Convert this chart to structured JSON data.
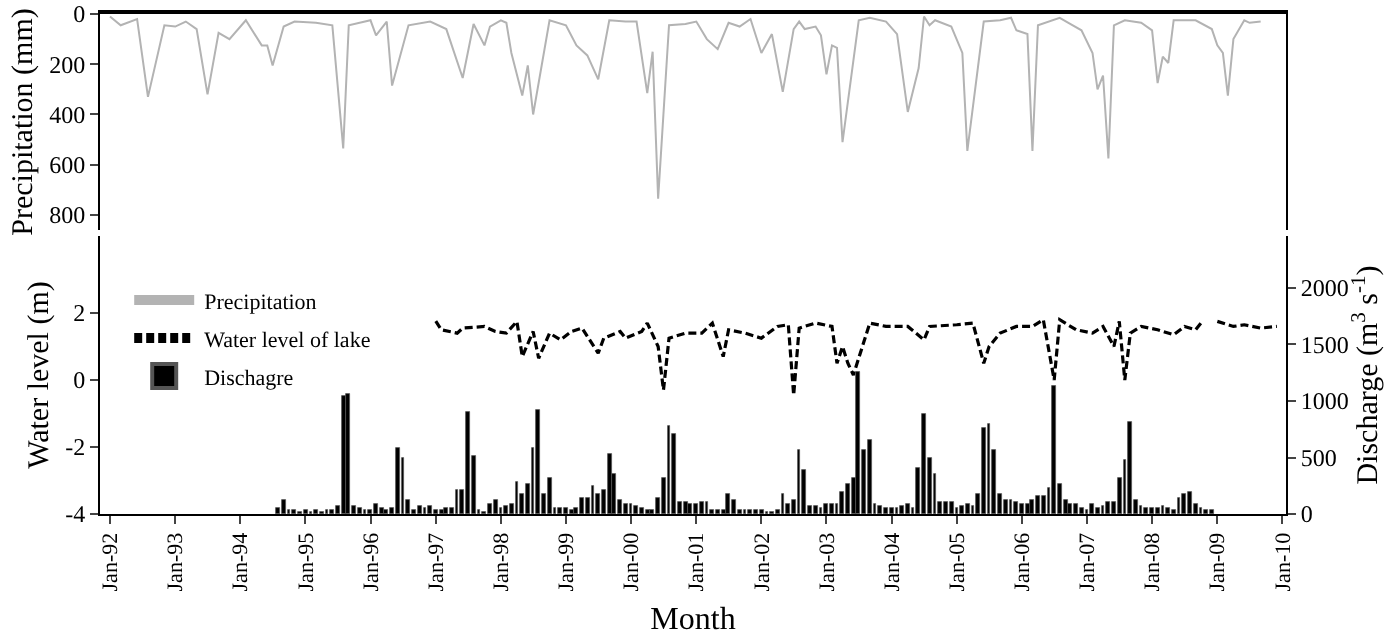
{
  "chart_data": [
    {
      "type": "line",
      "ylabel": "Precipitation (mm)",
      "xlim": [
        "1991-11-06",
        "2010-01-21"
      ],
      "ylim": [
        860,
        0
      ],
      "yticks": [
        0,
        200,
        400,
        600,
        800
      ],
      "tick_labels": "y",
      "series": [
        {
          "name": "Precipitation",
          "color": "#b3b3b3",
          "x": [
            "1992-01",
            "1992-03",
            "1992-06",
            "1992-08",
            "1992-11",
            "1993-01",
            "1993-03",
            "1993-05",
            "1993-07",
            "1993-09",
            "1993-11",
            "1994-02",
            "1994-05",
            "1994-06",
            "1994-07",
            "1994-09",
            "1994-11",
            "1995-03",
            "1995-06",
            "1995-08",
            "1995-09",
            "1996-01",
            "1996-02",
            "1996-04",
            "1996-05",
            "1996-08",
            "1996-12",
            "1997-03",
            "1997-06",
            "1997-08",
            "1997-10",
            "1997-11",
            "1998-01",
            "1998-02",
            "1998-03",
            "1998-05",
            "1998-06",
            "1998-07",
            "1998-10",
            "1999-01",
            "1999-03",
            "1999-05",
            "1999-07",
            "1999-09",
            "1999-12",
            "2000-02",
            "2000-04",
            "2000-05",
            "2000-06",
            "2000-08",
            "2000-11",
            "2001-01",
            "2001-03",
            "2001-05",
            "2001-07",
            "2001-09",
            "2001-11",
            "2002-01",
            "2002-03",
            "2002-05",
            "2002-07",
            "2002-08",
            "2002-09",
            "2002-11",
            "2002-12",
            "2003-01",
            "2003-02",
            "2003-03",
            "2003-04",
            "2003-07",
            "2003-09",
            "2003-12",
            "2004-02",
            "2004-04",
            "2004-06",
            "2004-07",
            "2004-08",
            "2004-09",
            "2004-12",
            "2005-02",
            "2005-03",
            "2005-06",
            "2005-09",
            "2005-11",
            "2005-12",
            "2006-02",
            "2006-03",
            "2006-04",
            "2006-08",
            "2006-10",
            "2006-12",
            "2007-02",
            "2007-03",
            "2007-04",
            "2007-05",
            "2007-06",
            "2007-08",
            "2007-11",
            "2008-01",
            "2008-02",
            "2008-03",
            "2008-04",
            "2008-05",
            "2008-07",
            "2008-09",
            "2008-12",
            "2009-01",
            "2009-02",
            "2009-03",
            "2009-04",
            "2009-06",
            "2009-07",
            "2009-09"
          ],
          "values": [
            10,
            45,
            20,
            330,
            45,
            50,
            30,
            60,
            320,
            75,
            100,
            25,
            125,
            125,
            205,
            50,
            30,
            35,
            45,
            535,
            45,
            25,
            85,
            30,
            285,
            45,
            30,
            60,
            255,
            40,
            125,
            50,
            25,
            35,
            155,
            325,
            205,
            400,
            25,
            45,
            125,
            165,
            260,
            25,
            30,
            30,
            315,
            150,
            735,
            45,
            40,
            30,
            100,
            140,
            35,
            50,
            20,
            155,
            80,
            310,
            60,
            30,
            60,
            50,
            85,
            240,
            125,
            135,
            510,
            25,
            15,
            30,
            80,
            390,
            215,
            10,
            45,
            25,
            50,
            155,
            545,
            30,
            25,
            15,
            65,
            80,
            545,
            45,
            15,
            40,
            65,
            155,
            300,
            245,
            575,
            45,
            25,
            35,
            65,
            275,
            170,
            195,
            25,
            25,
            25,
            60,
            125,
            155,
            325,
            100,
            25,
            35,
            30
          ]
        }
      ]
    },
    {
      "type": "bar",
      "xlabel": "Month",
      "ylabel": "Water level (m)",
      "y2label": "Discharge (m$^{3}$ s$^{-1}$)",
      "legend": "top left",
      "xlim": [
        "1991-11-06",
        "2010-01-21"
      ],
      "xticks": [
        {
          "value": "1992-01",
          "label": "Jan-92"
        },
        {
          "value": "1993-01",
          "label": "Jan-93"
        },
        {
          "value": "1994-01",
          "label": "Jan-94"
        },
        {
          "value": "1995-01",
          "label": "Jan-95"
        },
        {
          "value": "1996-01",
          "label": "Jan-96"
        },
        {
          "value": "1997-01",
          "label": "Jan-97"
        },
        {
          "value": "1998-01",
          "label": "Jan-98"
        },
        {
          "value": "1999-01",
          "label": "Jan-99"
        },
        {
          "value": "2000-01",
          "label": "Jan-00"
        },
        {
          "value": "2001-01",
          "label": "Jan-01"
        },
        {
          "value": "2002-01",
          "label": "Jan-02"
        },
        {
          "value": "2003-01",
          "label": "Jan-03"
        },
        {
          "value": "2004-01",
          "label": "Jan-04"
        },
        {
          "value": "2005-01",
          "label": "Jan-05"
        },
        {
          "value": "2006-01",
          "label": "Jan-06"
        },
        {
          "value": "2007-01",
          "label": "Jan-07"
        },
        {
          "value": "2008-01",
          "label": "Jan-08"
        },
        {
          "value": "2009-01",
          "label": "Jan-09"
        },
        {
          "value": "2010-01",
          "label": "Jan-10"
        }
      ],
      "ylim": [
        -4,
        4.3
      ],
      "yticks": [
        -4,
        -2,
        0,
        2
      ],
      "y2lim": [
        0,
        2460
      ],
      "y2ticks": [
        0,
        500,
        1000,
        1500,
        2000
      ],
      "series": [
        {
          "name": "Water level of lake",
          "type": "line",
          "line_style": "dashed",
          "color": "#000000",
          "x": [
            "1997-01",
            "1997-02",
            "1997-05",
            "1997-06",
            "1997-10",
            "1997-12",
            "1998-02",
            "1998-04",
            "1998-05",
            "1998-07",
            "1998-08",
            "1998-10",
            "1998-12",
            "1999-02",
            "1999-04",
            "1999-07",
            "1999-08",
            "1999-11",
            "1999-12",
            "2000-03",
            "2000-04",
            "2000-06",
            "2000-07",
            "2000-08",
            "2000-11",
            "2001-02",
            "2001-04",
            "2001-06",
            "2001-07",
            "2001-10",
            "2002-01",
            "2002-04",
            "2002-06",
            "2002-07",
            "2002-08",
            "2002-11",
            "2003-02",
            "2003-03",
            "2003-04",
            "2003-05",
            "2003-06",
            "2003-09",
            "2003-12",
            "2004-04",
            "2004-07",
            "2004-08",
            "2005-01",
            "2005-04",
            "2005-06",
            "2005-07",
            "2005-09",
            "2005-12",
            "2006-03",
            "2006-05",
            "2006-07",
            "2006-08",
            "2006-11",
            "2007-02",
            "2007-04",
            "2007-06",
            "2007-07",
            "2007-08",
            "2007-09",
            "2007-11",
            "2008-02",
            "2008-05",
            "2008-07",
            "2008-09",
            "2008-10",
            "2008-11",
            "2009-01",
            "2009-04",
            "2009-06",
            "2009-09",
            "2009-12"
          ],
          "values": [
            1.76,
            1.5,
            1.4,
            1.55,
            1.6,
            1.45,
            1.4,
            1.75,
            0.7,
            1.45,
            0.65,
            1.4,
            1.2,
            1.45,
            1.55,
            0.8,
            1.25,
            1.45,
            1.25,
            1.45,
            1.7,
            1.0,
            -0.3,
            1.25,
            1.4,
            1.4,
            1.7,
            0.7,
            1.5,
            1.4,
            1.25,
            1.6,
            1.65,
            -0.45,
            1.55,
            1.7,
            1.6,
            0.5,
            1.0,
            0.5,
            0.15,
            1.7,
            1.6,
            1.6,
            1.2,
            1.6,
            1.65,
            1.7,
            0.5,
            1.0,
            1.4,
            1.6,
            1.6,
            1.8,
            0.0,
            1.8,
            1.5,
            1.4,
            1.6,
            1.0,
            1.75,
            0.0,
            1.4,
            1.6,
            1.5,
            1.35,
            1.6,
            1.5,
            1.7,
            null,
            1.75,
            1.6,
            1.65,
            1.55,
            1.6
          ]
        },
        {
          "name": "Dischagre",
          "type": "bar",
          "axis": "y2",
          "color": "#000000",
          "x": [
            "1994-08",
            "1994-09",
            "1994-10",
            "1994-11",
            "1994-12",
            "1995-01",
            "1995-02",
            "1995-03",
            "1995-04",
            "1995-05",
            "1995-06",
            "1995-07",
            "1995-08",
            "1995-09",
            "1995-10",
            "1995-11",
            "1995-12",
            "1996-01",
            "1996-02",
            "1996-03",
            "1996-04",
            "1996-05",
            "1996-06",
            "1996-07",
            "1996-08",
            "1996-09",
            "1996-10",
            "1996-11",
            "1996-12",
            "1997-01",
            "1997-02",
            "1997-03",
            "1997-04",
            "1997-05",
            "1997-06",
            "1997-07",
            "1997-08",
            "1997-09",
            "1997-10",
            "1997-11",
            "1997-12",
            "1998-01",
            "1998-02",
            "1998-03",
            "1998-04",
            "1998-05",
            "1998-06",
            "1998-07",
            "1998-08",
            "1998-09",
            "1998-10",
            "1998-11",
            "1998-12",
            "1999-01",
            "1999-02",
            "1999-03",
            "1999-04",
            "1999-05",
            "1999-06",
            "1999-07",
            "1999-08",
            "1999-09",
            "1999-10",
            "1999-11",
            "1999-12",
            "2000-01",
            "2000-02",
            "2000-03",
            "2000-04",
            "2000-05",
            "2000-06",
            "2000-07",
            "2000-08",
            "2000-09",
            "2000-10",
            "2000-11",
            "2000-12",
            "2001-01",
            "2001-02",
            "2001-03",
            "2001-04",
            "2001-05",
            "2001-06",
            "2001-07",
            "2001-08",
            "2001-09",
            "2001-10",
            "2001-11",
            "2001-12",
            "2002-01",
            "2002-02",
            "2002-03",
            "2002-04",
            "2002-05",
            "2002-06",
            "2002-07",
            "2002-08",
            "2002-09",
            "2002-10",
            "2002-11",
            "2002-12",
            "2003-01",
            "2003-02",
            "2003-03",
            "2003-04",
            "2003-05",
            "2003-06",
            "2003-07",
            "2003-08",
            "2003-09",
            "2003-10",
            "2003-11",
            "2003-12",
            "2004-01",
            "2004-02",
            "2004-03",
            "2004-04",
            "2004-05",
            "2004-06",
            "2004-07",
            "2004-08",
            "2004-09",
            "2004-10",
            "2004-11",
            "2004-12",
            "2005-01",
            "2005-02",
            "2005-03",
            "2005-04",
            "2005-05",
            "2005-06",
            "2005-07",
            "2005-08",
            "2005-09",
            "2005-10",
            "2005-11",
            "2005-12",
            "2006-01",
            "2006-02",
            "2006-03",
            "2006-04",
            "2006-05",
            "2006-06",
            "2006-07",
            "2006-08",
            "2006-09",
            "2006-10",
            "2006-11",
            "2006-12",
            "2007-01",
            "2007-02",
            "2007-03",
            "2007-04",
            "2007-05",
            "2007-06",
            "2007-07",
            "2007-08",
            "2007-09",
            "2007-10",
            "2007-11",
            "2007-12",
            "2008-01",
            "2008-02",
            "2008-03",
            "2008-04",
            "2008-05",
            "2008-06",
            "2008-07",
            "2008-08",
            "2008-09",
            "2008-10",
            "2008-11",
            "2008-12"
          ],
          "values": [
            60,
            120,
            30,
            30,
            20,
            30,
            20,
            30,
            20,
            30,
            30,
            70,
            1040,
            1060,
            70,
            50,
            30,
            40,
            90,
            60,
            40,
            60,
            580,
            490,
            130,
            40,
            70,
            50,
            70,
            40,
            30,
            60,
            60,
            220,
            220,
            900,
            520,
            40,
            20,
            90,
            120,
            60,
            70,
            90,
            280,
            180,
            270,
            580,
            920,
            170,
            310,
            60,
            60,
            60,
            40,
            60,
            150,
            150,
            240,
            180,
            210,
            530,
            360,
            120,
            90,
            90,
            70,
            60,
            30,
            30,
            150,
            310,
            780,
            710,
            110,
            100,
            90,
            80,
            100,
            100,
            30,
            30,
            30,
            180,
            130,
            30,
            30,
            30,
            30,
            30,
            20,
            20,
            30,
            180,
            80,
            130,
            560,
            390,
            70,
            70,
            60,
            80,
            90,
            90,
            200,
            270,
            320,
            1260,
            560,
            650,
            80,
            70,
            60,
            50,
            60,
            70,
            90,
            60,
            400,
            880,
            490,
            350,
            100,
            100,
            100,
            50,
            70,
            90,
            70,
            180,
            760,
            800,
            570,
            180,
            130,
            120,
            100,
            90,
            80,
            130,
            160,
            160,
            230,
            1140,
            270,
            130,
            90,
            80,
            60,
            40,
            80,
            50,
            70,
            110,
            110,
            320,
            480,
            820,
            130,
            70,
            60,
            60,
            60,
            70,
            50,
            40,
            140,
            170,
            190,
            90,
            60,
            40,
            40
          ]
        }
      ]
    }
  ]
}
